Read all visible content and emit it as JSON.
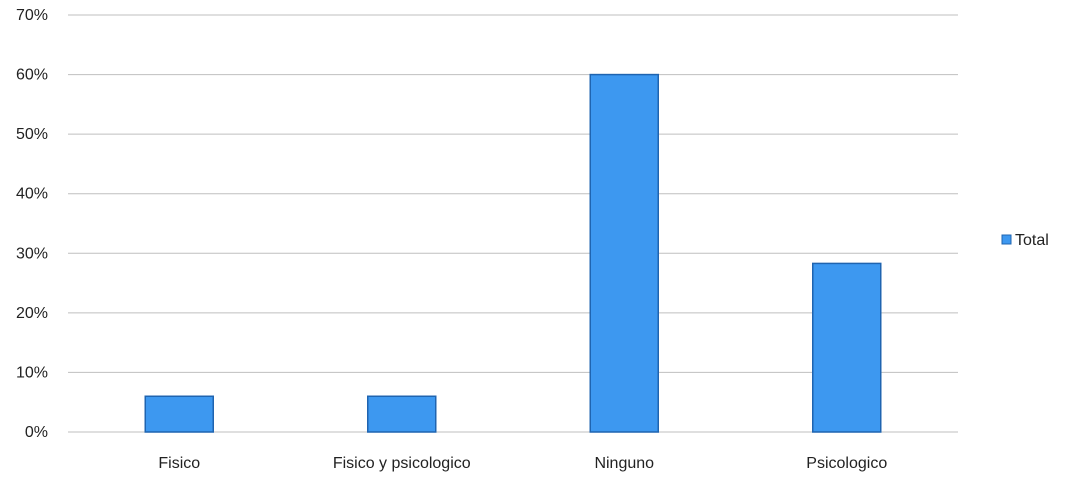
{
  "chart_data": {
    "type": "bar",
    "categories": [
      "Fisico",
      "Fisico y psicologico",
      "Ninguno",
      "Psicologico"
    ],
    "series": [
      {
        "name": "Total",
        "values": [
          6,
          6,
          60,
          28.3
        ],
        "color": "#3d98f0"
      }
    ],
    "y_ticks": [
      "0%",
      "10%",
      "20%",
      "30%",
      "40%",
      "50%",
      "60%",
      "70%"
    ],
    "ylim": [
      0,
      70
    ],
    "y_unit": "%",
    "grid": true,
    "legend_position": "right",
    "bar_border_color": "#1f64b0",
    "gridline_color": "#bfbfbf"
  }
}
